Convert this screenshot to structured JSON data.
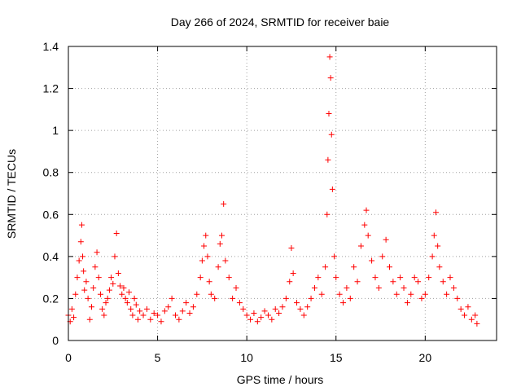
{
  "chart_data": {
    "type": "scatter",
    "title": "Day 266 of 2024, SRMTID for receiver baie",
    "xlabel": "GPS time / hours",
    "ylabel": "SRMTID / TECUs",
    "xlim": [
      0,
      24
    ],
    "ylim": [
      0,
      1.4
    ],
    "xticks": [
      0,
      5,
      10,
      15,
      20
    ],
    "xtick_labels": [
      "0",
      "5",
      "10",
      "15",
      "20"
    ],
    "yticks": [
      0,
      0.2,
      0.4,
      0.6,
      0.8,
      1.0,
      1.2,
      1.4
    ],
    "ytick_labels": [
      "0",
      "0.2",
      "0.4",
      "0.6",
      "0.8",
      "1",
      "1.2",
      "1.4"
    ],
    "grid": true,
    "marker": "plus",
    "color": "#ff0000",
    "series": [
      {
        "name": "SRMTID",
        "x": [
          0.0,
          0.1,
          0.2,
          0.3,
          0.4,
          0.5,
          0.6,
          0.7,
          0.75,
          0.8,
          0.85,
          0.9,
          1.0,
          1.1,
          1.2,
          1.3,
          1.4,
          1.5,
          1.6,
          1.7,
          1.8,
          1.9,
          2.0,
          2.1,
          2.2,
          2.3,
          2.4,
          2.5,
          2.6,
          2.7,
          2.8,
          2.9,
          3.0,
          3.1,
          3.2,
          3.3,
          3.4,
          3.5,
          3.6,
          3.7,
          3.8,
          3.9,
          4.0,
          4.2,
          4.4,
          4.6,
          4.8,
          5.0,
          5.2,
          5.4,
          5.6,
          5.8,
          6.0,
          6.2,
          6.4,
          6.6,
          6.8,
          7.0,
          7.2,
          7.4,
          7.5,
          7.6,
          7.7,
          7.8,
          7.9,
          8.0,
          8.2,
          8.4,
          8.5,
          8.6,
          8.7,
          8.8,
          9.0,
          9.2,
          9.4,
          9.6,
          9.8,
          10.0,
          10.2,
          10.4,
          10.6,
          10.8,
          11.0,
          11.2,
          11.4,
          11.6,
          11.8,
          12.0,
          12.2,
          12.4,
          12.5,
          12.6,
          12.8,
          13.0,
          13.2,
          13.4,
          13.6,
          13.8,
          14.0,
          14.2,
          14.4,
          14.5,
          14.55,
          14.6,
          14.65,
          14.7,
          14.75,
          14.8,
          14.9,
          15.0,
          15.2,
          15.4,
          15.6,
          15.8,
          16.0,
          16.2,
          16.4,
          16.6,
          16.7,
          16.8,
          17.0,
          17.2,
          17.4,
          17.6,
          17.8,
          18.0,
          18.2,
          18.4,
          18.6,
          18.8,
          19.0,
          19.2,
          19.4,
          19.6,
          19.8,
          20.0,
          20.2,
          20.4,
          20.5,
          20.6,
          20.7,
          20.8,
          21.0,
          21.2,
          21.4,
          21.6,
          21.8,
          22.0,
          22.2,
          22.4,
          22.6,
          22.8,
          22.9
        ],
        "y": [
          0.12,
          0.09,
          0.15,
          0.11,
          0.22,
          0.3,
          0.38,
          0.47,
          0.55,
          0.4,
          0.33,
          0.24,
          0.28,
          0.2,
          0.1,
          0.16,
          0.25,
          0.35,
          0.42,
          0.3,
          0.22,
          0.15,
          0.12,
          0.18,
          0.2,
          0.24,
          0.3,
          0.27,
          0.4,
          0.51,
          0.32,
          0.26,
          0.22,
          0.25,
          0.2,
          0.18,
          0.23,
          0.15,
          0.12,
          0.2,
          0.17,
          0.1,
          0.14,
          0.12,
          0.15,
          0.1,
          0.13,
          0.12,
          0.09,
          0.14,
          0.16,
          0.2,
          0.12,
          0.1,
          0.14,
          0.18,
          0.13,
          0.16,
          0.22,
          0.3,
          0.38,
          0.45,
          0.5,
          0.4,
          0.28,
          0.22,
          0.2,
          0.35,
          0.46,
          0.5,
          0.65,
          0.38,
          0.3,
          0.2,
          0.25,
          0.18,
          0.15,
          0.12,
          0.1,
          0.13,
          0.09,
          0.11,
          0.14,
          0.12,
          0.1,
          0.15,
          0.13,
          0.16,
          0.2,
          0.28,
          0.44,
          0.32,
          0.18,
          0.15,
          0.12,
          0.16,
          0.2,
          0.25,
          0.3,
          0.22,
          0.35,
          0.6,
          0.86,
          1.08,
          1.35,
          1.25,
          0.98,
          0.72,
          0.4,
          0.3,
          0.22,
          0.18,
          0.25,
          0.2,
          0.35,
          0.28,
          0.45,
          0.55,
          0.62,
          0.5,
          0.38,
          0.3,
          0.25,
          0.4,
          0.48,
          0.35,
          0.28,
          0.22,
          0.3,
          0.25,
          0.18,
          0.22,
          0.3,
          0.28,
          0.2,
          0.22,
          0.3,
          0.4,
          0.5,
          0.61,
          0.45,
          0.35,
          0.28,
          0.22,
          0.3,
          0.25,
          0.2,
          0.15,
          0.12,
          0.16,
          0.1,
          0.12,
          0.08
        ]
      }
    ]
  }
}
